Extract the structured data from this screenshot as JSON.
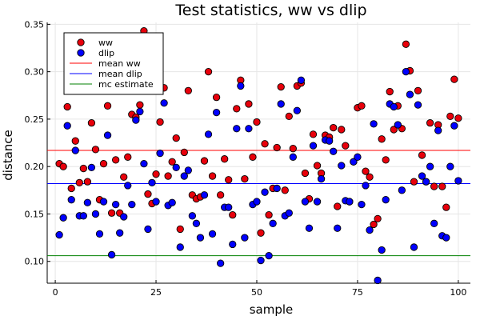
{
  "chart_data": {
    "type": "scatter",
    "title": "Test statistics, ww vs dlip",
    "xlabel": "sample",
    "ylabel": "distance",
    "xlim": [
      -2,
      103
    ],
    "ylim": [
      0.077,
      0.352
    ],
    "xticks": [
      0,
      25,
      50,
      75,
      100
    ],
    "xtick_labels": [
      "0",
      "25",
      "50",
      "75",
      "100"
    ],
    "yticks": [
      0.1,
      0.15,
      0.2,
      0.25,
      0.3,
      0.35
    ],
    "ytick_labels": [
      "0.10",
      "0.15",
      "0.20",
      "0.25",
      "0.30",
      "0.35"
    ],
    "grid": true,
    "legend_position": "top-left",
    "series": [
      {
        "name": "ww",
        "kind": "scatter",
        "color": "#e8000b",
        "x": [
          1,
          2,
          3,
          4,
          5,
          6,
          7,
          8,
          9,
          10,
          11,
          12,
          13,
          14,
          15,
          16,
          17,
          18,
          19,
          20,
          21,
          22,
          23,
          24,
          25,
          26,
          27,
          28,
          29,
          30,
          31,
          32,
          33,
          34,
          35,
          36,
          37,
          38,
          39,
          40,
          41,
          42,
          43,
          44,
          45,
          46,
          47,
          48,
          49,
          50,
          51,
          52,
          53,
          54,
          55,
          56,
          57,
          58,
          59,
          60,
          61,
          62,
          63,
          64,
          65,
          66,
          67,
          68,
          69,
          70,
          71,
          72,
          73,
          74,
          75,
          76,
          77,
          78,
          79,
          80,
          81,
          82,
          83,
          84,
          85,
          86,
          87,
          88,
          89,
          90,
          91,
          92,
          93,
          94,
          95,
          96,
          97,
          98,
          99,
          100
        ],
        "y": [
          0.203,
          0.2,
          0.263,
          0.177,
          0.227,
          0.183,
          0.198,
          0.184,
          0.246,
          0.218,
          0.165,
          0.203,
          0.264,
          0.151,
          0.207,
          0.151,
          0.189,
          0.21,
          0.255,
          0.252,
          0.265,
          0.343,
          0.171,
          0.161,
          0.192,
          0.247,
          0.283,
          0.19,
          0.205,
          0.23,
          0.134,
          0.215,
          0.28,
          0.17,
          0.166,
          0.168,
          0.206,
          0.3,
          0.19,
          0.273,
          0.17,
          0.208,
          0.186,
          0.149,
          0.261,
          0.291,
          0.187,
          0.266,
          0.21,
          0.247,
          0.13,
          0.224,
          0.149,
          0.177,
          0.22,
          0.284,
          0.175,
          0.253,
          0.219,
          0.285,
          0.288,
          0.193,
          0.166,
          0.234,
          0.201,
          0.193,
          0.233,
          0.231,
          0.241,
          0.158,
          0.239,
          0.222,
          0.163,
          0.205,
          0.262,
          0.264,
          0.195,
          0.189,
          0.139,
          0.145,
          0.229,
          0.207,
          0.279,
          0.239,
          0.264,
          0.24,
          0.329,
          0.301,
          0.184,
          0.28,
          0.212,
          0.184,
          0.246,
          0.179,
          0.244,
          0.179,
          0.157,
          0.253,
          0.292,
          0.251
        ]
      },
      {
        "name": "dlip",
        "kind": "scatter",
        "color": "#0000ff",
        "x": [
          1,
          2,
          3,
          4,
          5,
          6,
          7,
          8,
          9,
          10,
          11,
          12,
          13,
          14,
          15,
          16,
          17,
          18,
          19,
          20,
          21,
          22,
          23,
          24,
          25,
          26,
          27,
          28,
          29,
          30,
          31,
          32,
          33,
          34,
          35,
          36,
          37,
          38,
          39,
          40,
          41,
          42,
          43,
          44,
          45,
          46,
          47,
          48,
          49,
          50,
          51,
          52,
          53,
          54,
          55,
          56,
          57,
          58,
          59,
          60,
          61,
          62,
          63,
          64,
          65,
          66,
          67,
          68,
          69,
          70,
          71,
          72,
          73,
          74,
          75,
          76,
          77,
          78,
          79,
          80,
          81,
          82,
          83,
          84,
          85,
          86,
          87,
          88,
          89,
          90,
          91,
          92,
          93,
          94,
          95,
          96,
          97,
          98,
          99,
          100
        ],
        "y": [
          0.128,
          0.146,
          0.243,
          0.165,
          0.217,
          0.148,
          0.148,
          0.162,
          0.199,
          0.15,
          0.129,
          0.163,
          0.233,
          0.107,
          0.16,
          0.13,
          0.147,
          0.18,
          0.16,
          0.249,
          0.258,
          0.203,
          0.134,
          0.183,
          0.163,
          0.214,
          0.267,
          0.159,
          0.162,
          0.199,
          0.115,
          0.19,
          0.196,
          0.148,
          0.14,
          0.125,
          0.17,
          0.234,
          0.129,
          0.257,
          0.098,
          0.157,
          0.157,
          0.118,
          0.24,
          0.285,
          0.125,
          0.24,
          0.16,
          0.163,
          0.101,
          0.173,
          0.106,
          0.14,
          0.177,
          0.266,
          0.148,
          0.151,
          0.21,
          0.259,
          0.291,
          0.163,
          0.135,
          0.222,
          0.163,
          0.187,
          0.228,
          0.227,
          0.216,
          0.135,
          0.201,
          0.164,
          0.163,
          0.205,
          0.21,
          0.16,
          0.18,
          0.133,
          0.245,
          0.08,
          0.112,
          0.165,
          0.266,
          0.263,
          0.244,
          0.175,
          0.3,
          0.276,
          0.115,
          0.265,
          0.19,
          0.184,
          0.2,
          0.14,
          0.238,
          0.127,
          0.125,
          0.2,
          0.243,
          0.185
        ]
      },
      {
        "name": "mean ww",
        "kind": "hline",
        "color": "#ff0000",
        "y": 0.217
      },
      {
        "name": "mean dlip",
        "kind": "hline",
        "color": "#0000ff",
        "y": 0.182
      },
      {
        "name": "mc estimate",
        "kind": "hline",
        "color": "#008000",
        "y": 0.106
      }
    ]
  }
}
